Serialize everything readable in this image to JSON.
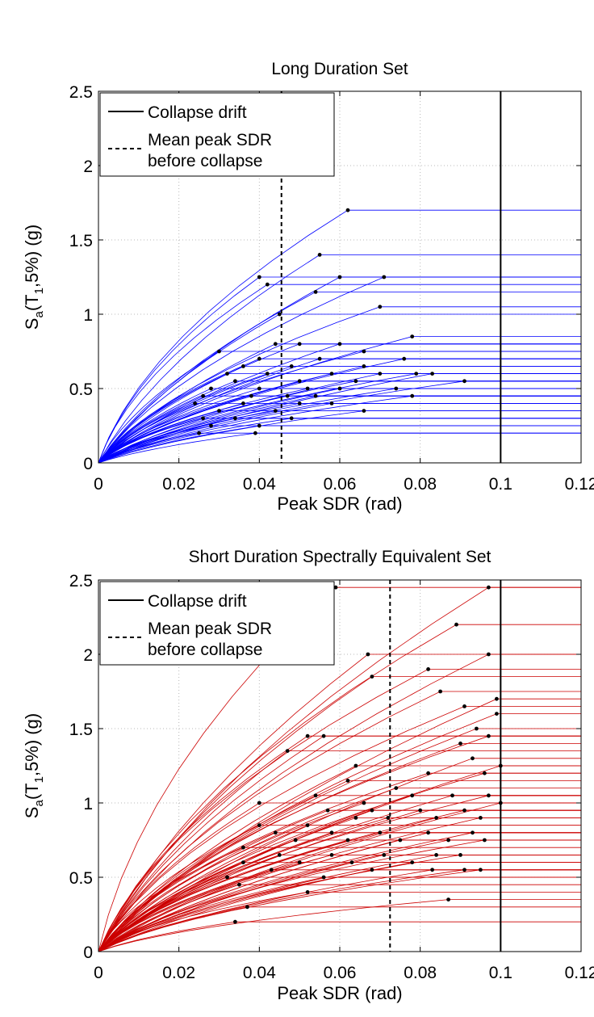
{
  "chart_data": [
    {
      "type": "line",
      "title": "Long Duration Set",
      "xlabel": "Peak SDR (rad)",
      "ylabel_main": "S",
      "ylabel_sub1": "a",
      "ylabel_mid": "(T",
      "ylabel_sub2": "1",
      "ylabel_end": ",5%) (g)",
      "xlim": [
        0,
        0.12
      ],
      "ylim": [
        0,
        2.5
      ],
      "xticks": [
        "0",
        "0.02",
        "0.04",
        "0.06",
        "0.08",
        "0.1",
        "0.12"
      ],
      "yticks": [
        "0",
        "0.5",
        "1",
        "1.5",
        "2",
        "2.5"
      ],
      "grid": true,
      "series_color": "#0000ff",
      "legend_position": "top-left",
      "legend": [
        "Collapse drift",
        "Mean peak SDR",
        "before collapse"
      ],
      "collapse_drift": 0.1,
      "mean_peak_sdr_before_collapse": 0.0455,
      "collapse_points": [
        [
          0.062,
          1.7
        ],
        [
          0.055,
          1.4
        ],
        [
          0.04,
          1.25
        ],
        [
          0.06,
          1.25
        ],
        [
          0.071,
          1.25
        ],
        [
          0.042,
          1.2
        ],
        [
          0.054,
          1.15
        ],
        [
          0.07,
          1.05
        ],
        [
          0.045,
          1.0
        ],
        [
          0.078,
          0.85
        ],
        [
          0.066,
          0.75
        ],
        [
          0.06,
          0.8
        ],
        [
          0.05,
          0.8
        ],
        [
          0.044,
          0.8
        ],
        [
          0.03,
          0.75
        ],
        [
          0.076,
          0.7
        ],
        [
          0.055,
          0.7
        ],
        [
          0.04,
          0.7
        ],
        [
          0.036,
          0.65
        ],
        [
          0.048,
          0.65
        ],
        [
          0.066,
          0.65
        ],
        [
          0.032,
          0.6
        ],
        [
          0.042,
          0.6
        ],
        [
          0.058,
          0.6
        ],
        [
          0.07,
          0.6
        ],
        [
          0.079,
          0.6
        ],
        [
          0.083,
          0.6
        ],
        [
          0.05,
          0.55
        ],
        [
          0.064,
          0.55
        ],
        [
          0.034,
          0.55
        ],
        [
          0.091,
          0.55
        ],
        [
          0.028,
          0.5
        ],
        [
          0.04,
          0.5
        ],
        [
          0.052,
          0.5
        ],
        [
          0.06,
          0.5
        ],
        [
          0.074,
          0.5
        ],
        [
          0.026,
          0.45
        ],
        [
          0.038,
          0.45
        ],
        [
          0.047,
          0.45
        ],
        [
          0.054,
          0.45
        ],
        [
          0.078,
          0.45
        ],
        [
          0.024,
          0.4
        ],
        [
          0.036,
          0.4
        ],
        [
          0.05,
          0.4
        ],
        [
          0.058,
          0.4
        ],
        [
          0.03,
          0.35
        ],
        [
          0.044,
          0.35
        ],
        [
          0.066,
          0.35
        ],
        [
          0.026,
          0.3
        ],
        [
          0.034,
          0.3
        ],
        [
          0.048,
          0.3
        ],
        [
          0.028,
          0.25
        ],
        [
          0.04,
          0.25
        ],
        [
          0.025,
          0.2
        ],
        [
          0.039,
          0.2
        ]
      ]
    },
    {
      "type": "line",
      "title": "Short Duration Spectrally Equivalent Set",
      "xlabel": "Peak SDR (rad)",
      "ylabel_main": "S",
      "ylabel_sub1": "a",
      "ylabel_mid": "(T",
      "ylabel_sub2": "1",
      "ylabel_end": ",5%) (g)",
      "xlim": [
        0,
        0.12
      ],
      "ylim": [
        0,
        2.5
      ],
      "xticks": [
        "0",
        "0.02",
        "0.04",
        "0.06",
        "0.08",
        "0.1",
        "0.12"
      ],
      "yticks": [
        "0",
        "0.5",
        "1",
        "1.5",
        "2",
        "2.5"
      ],
      "grid": true,
      "series_color": "#cc0000",
      "legend_position": "top-left",
      "legend": [
        "Collapse drift",
        "Mean peak SDR",
        "before collapse"
      ],
      "collapse_drift": 0.1,
      "mean_peak_sdr_before_collapse": 0.0725,
      "collapse_points": [
        [
          0.059,
          2.45
        ],
        [
          0.097,
          2.45
        ],
        [
          0.089,
          2.2
        ],
        [
          0.067,
          2.0
        ],
        [
          0.097,
          2.0
        ],
        [
          0.082,
          1.9
        ],
        [
          0.068,
          1.85
        ],
        [
          0.085,
          1.75
        ],
        [
          0.099,
          1.7
        ],
        [
          0.099,
          1.6
        ],
        [
          0.091,
          1.65
        ],
        [
          0.056,
          1.45
        ],
        [
          0.052,
          1.45
        ],
        [
          0.047,
          1.35
        ],
        [
          0.094,
          1.5
        ],
        [
          0.097,
          1.45
        ],
        [
          0.064,
          1.25
        ],
        [
          0.09,
          1.4
        ],
        [
          0.093,
          1.3
        ],
        [
          0.1,
          1.25
        ],
        [
          0.096,
          1.2
        ],
        [
          0.062,
          1.15
        ],
        [
          0.074,
          1.1
        ],
        [
          0.082,
          1.2
        ],
        [
          0.054,
          1.05
        ],
        [
          0.066,
          1.0
        ],
        [
          0.078,
          1.05
        ],
        [
          0.088,
          1.05
        ],
        [
          0.097,
          1.05
        ],
        [
          0.04,
          1.0
        ],
        [
          0.057,
          0.95
        ],
        [
          0.068,
          0.95
        ],
        [
          0.08,
          0.95
        ],
        [
          0.091,
          0.95
        ],
        [
          0.1,
          1.0
        ],
        [
          0.04,
          0.85
        ],
        [
          0.052,
          0.85
        ],
        [
          0.064,
          0.9
        ],
        [
          0.072,
          0.9
        ],
        [
          0.084,
          0.9
        ],
        [
          0.095,
          0.9
        ],
        [
          0.044,
          0.8
        ],
        [
          0.058,
          0.8
        ],
        [
          0.07,
          0.8
        ],
        [
          0.082,
          0.8
        ],
        [
          0.093,
          0.8
        ],
        [
          0.036,
          0.7
        ],
        [
          0.049,
          0.75
        ],
        [
          0.062,
          0.75
        ],
        [
          0.075,
          0.75
        ],
        [
          0.087,
          0.75
        ],
        [
          0.096,
          0.75
        ],
        [
          0.045,
          0.65
        ],
        [
          0.058,
          0.65
        ],
        [
          0.071,
          0.65
        ],
        [
          0.084,
          0.65
        ],
        [
          0.09,
          0.65
        ],
        [
          0.036,
          0.6
        ],
        [
          0.05,
          0.6
        ],
        [
          0.063,
          0.6
        ],
        [
          0.078,
          0.6
        ],
        [
          0.091,
          0.55
        ],
        [
          0.032,
          0.5
        ],
        [
          0.043,
          0.55
        ],
        [
          0.068,
          0.55
        ],
        [
          0.083,
          0.55
        ],
        [
          0.095,
          0.55
        ],
        [
          0.035,
          0.45
        ],
        [
          0.056,
          0.5
        ],
        [
          0.052,
          0.4
        ],
        [
          0.037,
          0.3
        ],
        [
          0.087,
          0.35
        ],
        [
          0.034,
          0.2
        ]
      ]
    }
  ]
}
